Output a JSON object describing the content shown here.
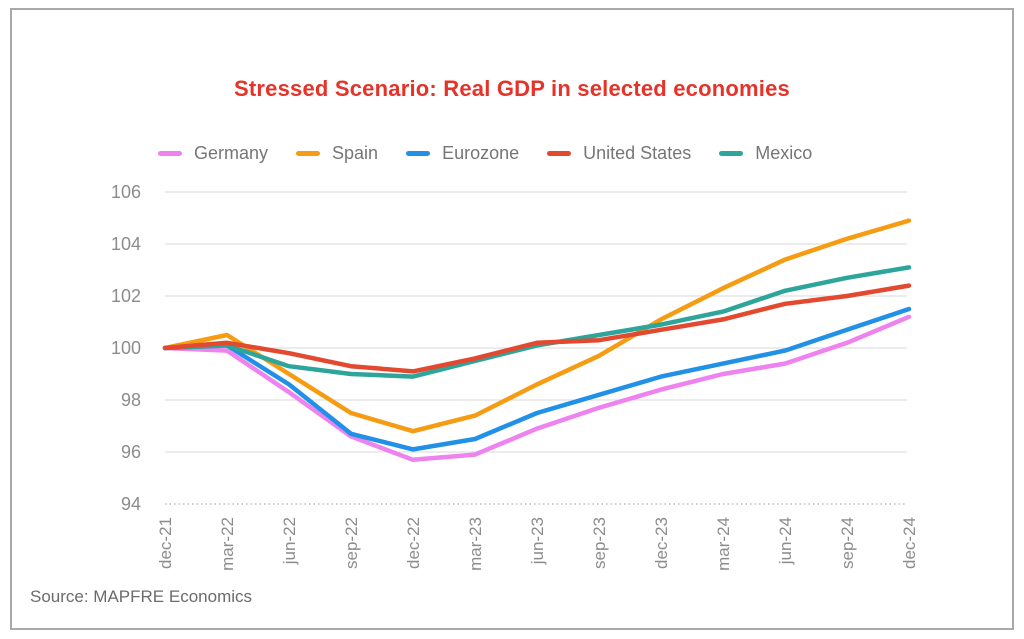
{
  "panel": {
    "title": "Stressed Scenario: Real GDP in selected economies",
    "title_color": "#e5332a"
  },
  "footer": {
    "source": "Source: MAPFRE Economics"
  },
  "chart_data": {
    "type": "line",
    "title": "Stressed Scenario: Real GDP in selected economies",
    "categories": [
      "dec-21",
      "mar-22",
      "jun-22",
      "sep-22",
      "dec-22",
      "mar-23",
      "jun-23",
      "sep-23",
      "dec-23",
      "mar-24",
      "jun-24",
      "sep-24",
      "dec-24"
    ],
    "series": [
      {
        "name": "Germany",
        "color": "#ee82ee",
        "values": [
          100,
          99.9,
          98.3,
          96.6,
          95.7,
          95.9,
          96.9,
          97.7,
          98.4,
          99.0,
          99.4,
          100.2,
          101.2
        ]
      },
      {
        "name": "Spain",
        "color": "#f59c12",
        "values": [
          100,
          100.5,
          99.0,
          97.5,
          96.8,
          97.4,
          98.6,
          99.7,
          101.1,
          102.3,
          103.4,
          104.2,
          104.9
        ]
      },
      {
        "name": "Eurozone",
        "color": "#2191e8",
        "values": [
          100,
          100.1,
          98.6,
          96.7,
          96.1,
          96.5,
          97.5,
          98.2,
          98.9,
          99.4,
          99.9,
          100.7,
          101.5
        ]
      },
      {
        "name": "United States",
        "color": "#e2492f",
        "values": [
          100,
          100.2,
          99.8,
          99.3,
          99.1,
          99.6,
          100.2,
          100.3,
          100.7,
          101.1,
          101.7,
          102.0,
          102.4
        ]
      },
      {
        "name": "Mexico",
        "color": "#2ea59a",
        "values": [
          100,
          100.1,
          99.3,
          99.0,
          98.9,
          99.5,
          100.1,
          100.5,
          100.9,
          101.4,
          102.2,
          102.7,
          103.1
        ]
      }
    ],
    "ylim": [
      94,
      106
    ],
    "yticks": [
      94,
      96,
      98,
      100,
      102,
      104,
      106
    ],
    "grid": "horizontal",
    "baseline_dotted_tick": 94,
    "legend_position": "top",
    "axis_text_color": "#8c8c8c",
    "gridline_color": "#d9d9d9"
  }
}
